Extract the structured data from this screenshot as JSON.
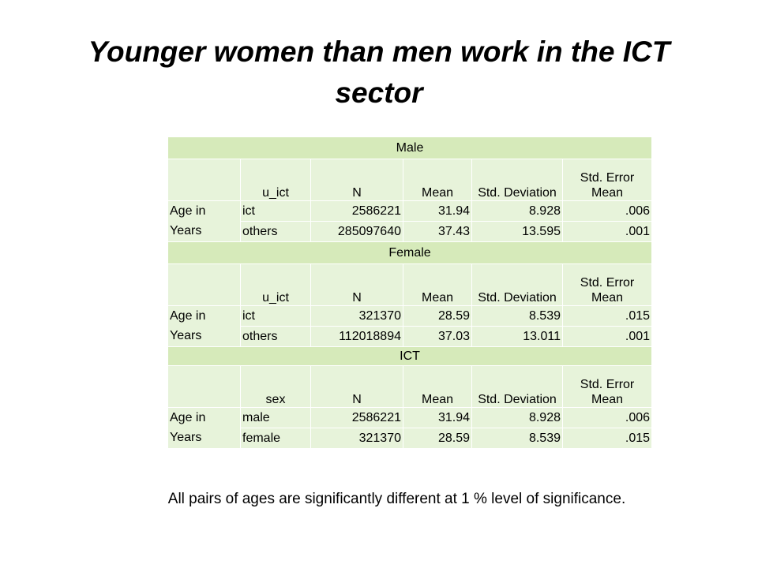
{
  "title": "Younger women than men work in the ICT sector",
  "table": {
    "header_labels": {
      "n": "N",
      "mean": "Mean",
      "std_dev": "Std. Deviation",
      "std_err": "Std. Error Mean"
    },
    "sections": [
      {
        "name": "Male",
        "group_header": "u_ict",
        "row_label": "Age in Years",
        "rows": [
          {
            "category": "ict",
            "n": "2586221",
            "mean": "31.94",
            "std_dev": "8.928",
            "std_err": ".006"
          },
          {
            "category": "others",
            "n": "285097640",
            "mean": "37.43",
            "std_dev": "13.595",
            "std_err": ".001"
          }
        ]
      },
      {
        "name": "Female",
        "group_header": "u_ict",
        "row_label": "Age in Years",
        "rows": [
          {
            "category": "ict",
            "n": "321370",
            "mean": "28.59",
            "std_dev": "8.539",
            "std_err": ".015"
          },
          {
            "category": "others",
            "n": "112018894",
            "mean": "37.03",
            "std_dev": "13.011",
            "std_err": ".001"
          }
        ]
      },
      {
        "name": "ICT",
        "group_header": "sex",
        "row_label": "Age in Years",
        "rows": [
          {
            "category": "male",
            "n": "2586221",
            "mean": "31.94",
            "std_dev": "8.928",
            "std_err": ".006"
          },
          {
            "category": "female",
            "n": "321370",
            "mean": "28.59",
            "std_dev": "8.539",
            "std_err": ".015"
          }
        ]
      }
    ]
  },
  "footnote": "All pairs of ages are significantly different at 1 % level of significance."
}
